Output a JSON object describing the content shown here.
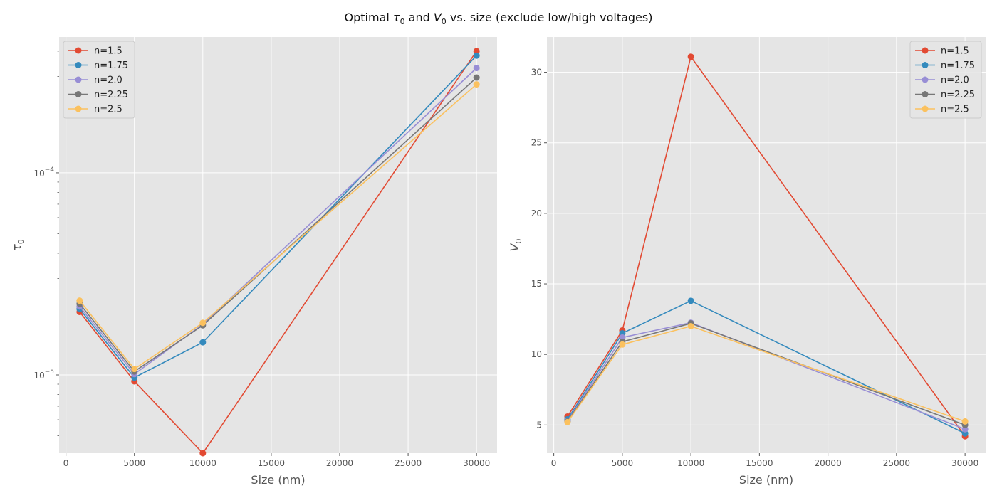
{
  "figure": {
    "title_prefix": "Optimal ",
    "title_tau": "τ",
    "title_tau_sub": "0",
    "title_mid": " and ",
    "title_v": "V",
    "title_v_sub": "0",
    "title_suffix": " vs. size (exclude low/high voltages)"
  },
  "colors": {
    "n=1.5": "#E24A33",
    "n=1.75": "#348ABD",
    "n=2.0": "#988ED5",
    "n=2.25": "#777777",
    "n=2.5": "#FBC15E",
    "plot_bg": "#E5E5E5",
    "grid": "#FFFFFF"
  },
  "chart_data": [
    {
      "type": "line",
      "xlabel": "Size (nm)",
      "ylabel_symbol": "τ",
      "ylabel_sub": "0",
      "yscale": "log",
      "xlim": [
        -500,
        31500
      ],
      "ylim": [
        4.1e-06,
        0.00047
      ],
      "x": [
        1000,
        5000,
        10000,
        30000
      ],
      "x_ticks": [
        0,
        5000,
        10000,
        15000,
        20000,
        25000,
        30000
      ],
      "y_major_ticks": [
        {
          "value": 1e-05,
          "base": "10",
          "exp": "−5"
        },
        {
          "value": 0.0001,
          "base": "10",
          "exp": "−4"
        }
      ],
      "legend_position": "upper left",
      "grid": true,
      "series": [
        {
          "name": "n=1.5",
          "values": [
            2.05e-05,
            9.3e-06,
            4.1e-06,
            0.0004
          ]
        },
        {
          "name": "n=1.75",
          "values": [
            2.12e-05,
            9.7e-06,
            1.45e-05,
            0.00038
          ]
        },
        {
          "name": "n=2.0",
          "values": [
            2.18e-05,
            1.01e-05,
            1.78e-05,
            0.00033
          ]
        },
        {
          "name": "n=2.25",
          "values": [
            2.25e-05,
            1.04e-05,
            1.76e-05,
            0.000296
          ]
        },
        {
          "name": "n=2.5",
          "values": [
            2.33e-05,
            1.07e-05,
            1.81e-05,
            0.000274
          ]
        }
      ]
    },
    {
      "type": "line",
      "xlabel": "Size (nm)",
      "ylabel_symbol": "V",
      "ylabel_sub": "0",
      "yscale": "linear",
      "xlim": [
        -500,
        31500
      ],
      "ylim": [
        3.0,
        32.5
      ],
      "x": [
        1000,
        5000,
        10000,
        30000
      ],
      "x_ticks": [
        0,
        5000,
        10000,
        15000,
        20000,
        25000,
        30000
      ],
      "y_ticks": [
        5,
        10,
        15,
        20,
        25,
        30
      ],
      "legend_position": "upper right",
      "grid": true,
      "series": [
        {
          "name": "n=1.5",
          "values": [
            5.6,
            11.7,
            31.1,
            4.2
          ]
        },
        {
          "name": "n=1.75",
          "values": [
            5.4,
            11.5,
            13.8,
            4.4
          ]
        },
        {
          "name": "n=2.0",
          "values": [
            5.3,
            11.2,
            12.25,
            4.7
          ]
        },
        {
          "name": "n=2.25",
          "values": [
            5.25,
            10.9,
            12.2,
            5.0
          ]
        },
        {
          "name": "n=2.5",
          "values": [
            5.2,
            10.7,
            12.0,
            5.25
          ]
        }
      ]
    }
  ]
}
